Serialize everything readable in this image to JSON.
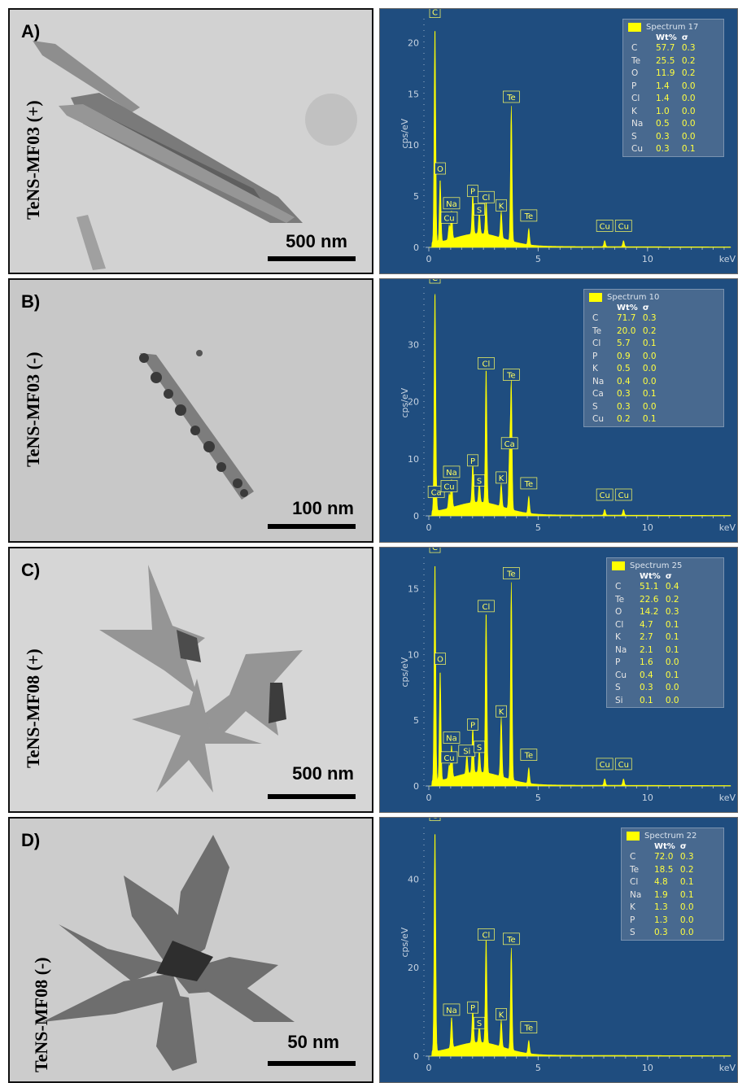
{
  "panels": [
    {
      "label": "A)",
      "sample": "TeNS-MF03 (+)",
      "scale": "500 nm",
      "spectrum": "Spectrum 17",
      "y_ticks": [
        "0",
        "5",
        "10",
        "15",
        "20"
      ],
      "y_max": 22.5,
      "composition": [
        {
          "el": "C",
          "wt": "57.7",
          "sigma": "0.3"
        },
        {
          "el": "Te",
          "wt": "25.5",
          "sigma": "0.2"
        },
        {
          "el": "O",
          "wt": "11.9",
          "sigma": "0.2"
        },
        {
          "el": "P",
          "wt": "1.4",
          "sigma": "0.0"
        },
        {
          "el": "Cl",
          "wt": "1.4",
          "sigma": "0.0"
        },
        {
          "el": "K",
          "wt": "1.0",
          "sigma": "0.0"
        },
        {
          "el": "Na",
          "wt": "0.5",
          "sigma": "0.0"
        },
        {
          "el": "S",
          "wt": "0.3",
          "sigma": "0.0"
        },
        {
          "el": "Cu",
          "wt": "0.3",
          "sigma": "0.1"
        }
      ],
      "peaks": [
        {
          "label": "C",
          "kev": 0.28,
          "cps": 21.5
        },
        {
          "label": "O",
          "kev": 0.52,
          "cps": 6.2
        },
        {
          "label": "Na",
          "kev": 1.04,
          "cps": 2.8
        },
        {
          "label": "Cu",
          "kev": 0.93,
          "cps": 1.4
        },
        {
          "label": "P",
          "kev": 2.01,
          "cps": 4.0
        },
        {
          "label": "S",
          "kev": 2.31,
          "cps": 2.2
        },
        {
          "label": "Cl",
          "kev": 2.62,
          "cps": 3.4
        },
        {
          "label": "K",
          "kev": 3.31,
          "cps": 2.6
        },
        {
          "label": "Te",
          "kev": 3.77,
          "cps": 13.2
        },
        {
          "label": "Te",
          "kev": 4.57,
          "cps": 1.6
        },
        {
          "label": "Cu",
          "kev": 8.04,
          "cps": 0.6
        },
        {
          "label": "Cu",
          "kev": 8.9,
          "cps": 0.6
        }
      ]
    },
    {
      "label": "B)",
      "sample": "TeNS-MF03 (-)",
      "scale": "100 nm",
      "spectrum": "Spectrum 10",
      "y_ticks": [
        "0",
        "10",
        "20",
        "30"
      ],
      "y_max": 40,
      "composition": [
        {
          "el": "C",
          "wt": "71.7",
          "sigma": "0.3"
        },
        {
          "el": "Te",
          "wt": "20.0",
          "sigma": "0.2"
        },
        {
          "el": "Cl",
          "wt": "5.7",
          "sigma": "0.1"
        },
        {
          "el": "P",
          "wt": "0.9",
          "sigma": "0.0"
        },
        {
          "el": "K",
          "wt": "0.5",
          "sigma": "0.0"
        },
        {
          "el": "Na",
          "wt": "0.4",
          "sigma": "0.0"
        },
        {
          "el": "Ca",
          "wt": "0.3",
          "sigma": "0.1"
        },
        {
          "el": "S",
          "wt": "0.3",
          "sigma": "0.0"
        },
        {
          "el": "Cu",
          "wt": "0.2",
          "sigma": "0.1"
        }
      ],
      "peaks": [
        {
          "label": "C",
          "kev": 0.28,
          "cps": 39.0
        },
        {
          "label": "Ca",
          "kev": 0.34,
          "cps": 1.5
        },
        {
          "label": "Na",
          "kev": 1.04,
          "cps": 5.0
        },
        {
          "label": "Cu",
          "kev": 0.93,
          "cps": 2.5
        },
        {
          "label": "P",
          "kev": 2.01,
          "cps": 7.0
        },
        {
          "label": "S",
          "kev": 2.31,
          "cps": 3.5
        },
        {
          "label": "Cl",
          "kev": 2.62,
          "cps": 24.0
        },
        {
          "label": "K",
          "kev": 3.31,
          "cps": 4.0
        },
        {
          "label": "Te",
          "kev": 3.77,
          "cps": 22.0
        },
        {
          "label": "Ca",
          "kev": 3.69,
          "cps": 10.0
        },
        {
          "label": "Te",
          "kev": 4.57,
          "cps": 3.0
        },
        {
          "label": "Cu",
          "kev": 8.04,
          "cps": 1.0
        },
        {
          "label": "Cu",
          "kev": 8.9,
          "cps": 1.0
        }
      ]
    },
    {
      "label": "C)",
      "sample": "TeNS-MF08 (+)",
      "scale": "500 nm",
      "spectrum": "Spectrum 25",
      "y_ticks": [
        "0",
        "5",
        "10",
        "15"
      ],
      "y_max": 17.5,
      "composition": [
        {
          "el": "C",
          "wt": "51.1",
          "sigma": "0.4"
        },
        {
          "el": "Te",
          "wt": "22.6",
          "sigma": "0.2"
        },
        {
          "el": "O",
          "wt": "14.2",
          "sigma": "0.3"
        },
        {
          "el": "Cl",
          "wt": "4.7",
          "sigma": "0.1"
        },
        {
          "el": "K",
          "wt": "2.7",
          "sigma": "0.1"
        },
        {
          "el": "Na",
          "wt": "2.1",
          "sigma": "0.1"
        },
        {
          "el": "P",
          "wt": "1.6",
          "sigma": "0.0"
        },
        {
          "el": "Cu",
          "wt": "0.4",
          "sigma": "0.1"
        },
        {
          "el": "S",
          "wt": "0.3",
          "sigma": "0.0"
        },
        {
          "el": "Si",
          "wt": "0.1",
          "sigma": "0.0"
        }
      ],
      "peaks": [
        {
          "label": "C",
          "kev": 0.28,
          "cps": 17.0
        },
        {
          "label": "O",
          "kev": 0.52,
          "cps": 8.5
        },
        {
          "label": "Na",
          "kev": 1.04,
          "cps": 2.5
        },
        {
          "label": "Cu",
          "kev": 0.93,
          "cps": 1.0
        },
        {
          "label": "Si",
          "kev": 1.74,
          "cps": 1.5
        },
        {
          "label": "P",
          "kev": 2.01,
          "cps": 3.5
        },
        {
          "label": "S",
          "kev": 2.31,
          "cps": 1.8
        },
        {
          "label": "Cl",
          "kev": 2.62,
          "cps": 12.5
        },
        {
          "label": "K",
          "kev": 3.31,
          "cps": 4.5
        },
        {
          "label": "Te",
          "kev": 3.77,
          "cps": 15.0
        },
        {
          "label": "Te",
          "kev": 4.57,
          "cps": 1.2
        },
        {
          "label": "Cu",
          "kev": 8.04,
          "cps": 0.5
        },
        {
          "label": "Cu",
          "kev": 8.9,
          "cps": 0.5
        }
      ]
    },
    {
      "label": "D)",
      "sample": "TeNS-MF08 (-)",
      "scale": "50 nm",
      "spectrum": "Spectrum 22",
      "y_ticks": [
        "0",
        "20",
        "40"
      ],
      "y_max": 52,
      "composition": [
        {
          "el": "C",
          "wt": "72.0",
          "sigma": "0.3"
        },
        {
          "el": "Te",
          "wt": "18.5",
          "sigma": "0.2"
        },
        {
          "el": "Cl",
          "wt": "4.8",
          "sigma": "0.1"
        },
        {
          "el": "Na",
          "wt": "1.9",
          "sigma": "0.1"
        },
        {
          "el": "K",
          "wt": "1.3",
          "sigma": "0.0"
        },
        {
          "el": "P",
          "wt": "1.3",
          "sigma": "0.0"
        },
        {
          "el": "S",
          "wt": "0.3",
          "sigma": "0.0"
        }
      ],
      "peaks": [
        {
          "label": "C",
          "kev": 0.28,
          "cps": 51.0
        },
        {
          "label": "Na",
          "kev": 1.04,
          "cps": 7.0
        },
        {
          "label": "P",
          "kev": 2.01,
          "cps": 7.5
        },
        {
          "label": "S",
          "kev": 2.31,
          "cps": 4.0
        },
        {
          "label": "Cl",
          "kev": 2.62,
          "cps": 24.0
        },
        {
          "label": "K",
          "kev": 3.31,
          "cps": 6.0
        },
        {
          "label": "Te",
          "kev": 3.77,
          "cps": 23.0
        },
        {
          "label": "Te",
          "kev": 4.57,
          "cps": 3.0
        }
      ]
    }
  ],
  "eds_axis": {
    "ylabel": "cps/eV",
    "x_ticks": [
      "0",
      "5",
      "10"
    ],
    "x_unit": "keV",
    "x_max": 13.8
  },
  "legend_headers": {
    "wt": "Wt%",
    "sigma": "σ"
  }
}
